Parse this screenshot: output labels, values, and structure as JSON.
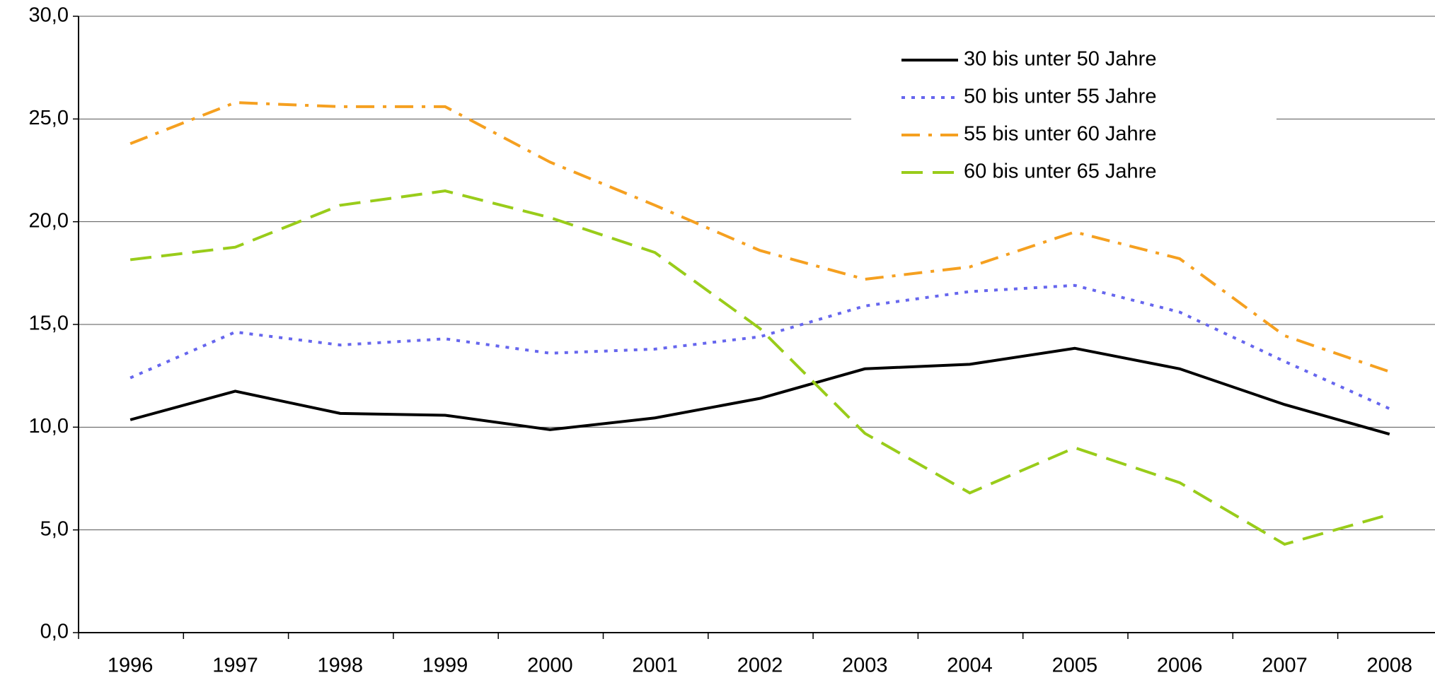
{
  "chart_data": {
    "type": "line",
    "categories": [
      "1996",
      "1997",
      "1998",
      "1999",
      "2000",
      "2001",
      "2002",
      "2003",
      "2004",
      "2005",
      "2006",
      "2007",
      "2008"
    ],
    "series": [
      {
        "name": "30 bis unter 50 Jahre",
        "color": "#000000",
        "dash": "solid",
        "values": [
          10.36,
          11.75,
          10.67,
          10.58,
          9.88,
          10.45,
          11.4,
          12.84,
          13.06,
          13.84,
          12.84,
          11.1,
          9.66
        ]
      },
      {
        "name": "50 bis unter 55 Jahre",
        "color": "#6666ee",
        "dash": "dot",
        "values": [
          12.4,
          14.63,
          14.0,
          14.3,
          13.6,
          13.8,
          14.4,
          15.9,
          16.6,
          16.9,
          15.6,
          13.2,
          10.9
        ]
      },
      {
        "name": "55 bis unter 60 Jahre",
        "color": "#f5a020",
        "dash": "dashdot",
        "values": [
          23.8,
          25.8,
          25.6,
          25.6,
          22.9,
          20.8,
          18.6,
          17.2,
          17.8,
          19.5,
          18.2,
          14.45,
          12.7
        ]
      },
      {
        "name": "60 bis unter 65 Jahre",
        "color": "#99cc1a",
        "dash": "dash",
        "values": [
          18.15,
          18.76,
          20.8,
          21.5,
          20.2,
          18.5,
          14.8,
          9.7,
          6.8,
          9.0,
          7.3,
          4.3,
          5.75
        ]
      }
    ],
    "ylim": [
      0,
      30
    ],
    "yticks": [
      {
        "value": 0,
        "label": "0,0"
      },
      {
        "value": 5,
        "label": "5,0"
      },
      {
        "value": 10,
        "label": "10,0"
      },
      {
        "value": 15,
        "label": "15,0"
      },
      {
        "value": 20,
        "label": "20,0"
      },
      {
        "value": 25,
        "label": "25,0"
      },
      {
        "value": 30,
        "label": "30,0"
      }
    ],
    "grid": true,
    "legend": "top-right"
  }
}
